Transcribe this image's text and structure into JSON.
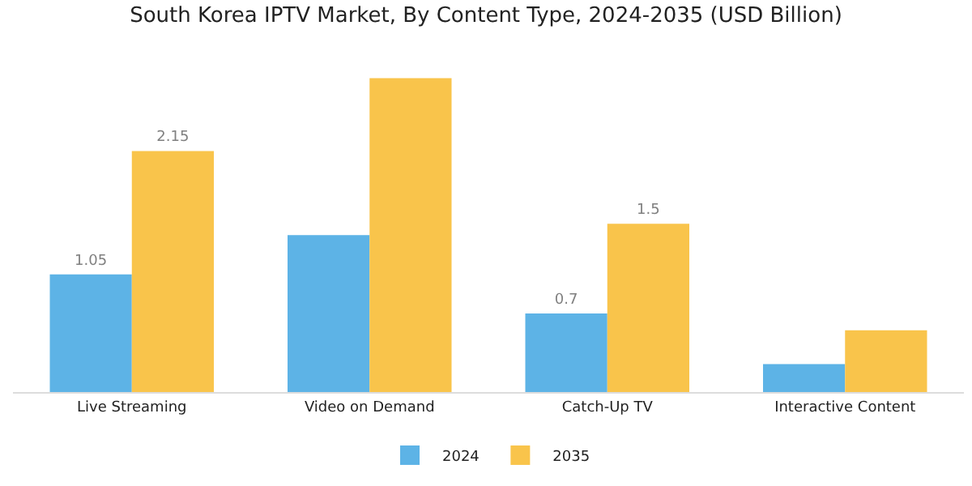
{
  "chart_data": {
    "type": "bar",
    "title": "South Korea IPTV Market, By Content Type, 2024-2035 (USD Billion)",
    "categories": [
      "Live Streaming",
      "Video on Demand",
      "Catch-Up TV",
      "Interactive Content"
    ],
    "series": [
      {
        "name": "2024",
        "color": "#5db3e6",
        "values": [
          1.05,
          1.4,
          0.7,
          0.25
        ],
        "value_labels": [
          "1.05",
          null,
          "0.7",
          null
        ]
      },
      {
        "name": "2035",
        "color": "#f9c44b",
        "values": [
          2.15,
          2.8,
          1.5,
          0.55
        ],
        "value_labels": [
          "2.15",
          null,
          "1.5",
          null
        ]
      }
    ],
    "legend": "bottom"
  }
}
